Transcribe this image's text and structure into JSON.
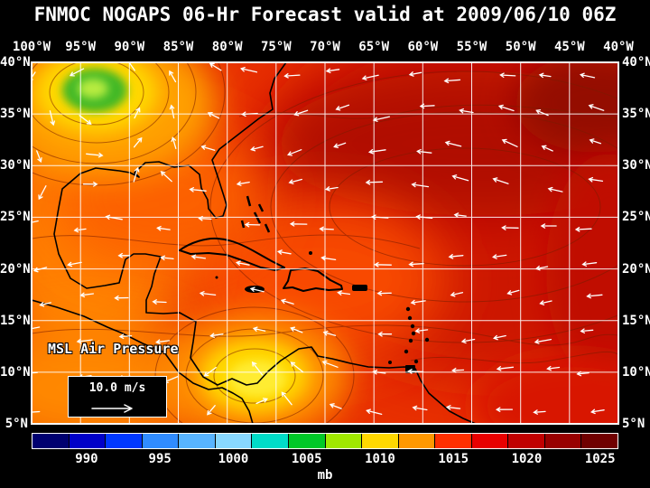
{
  "title": "FNMOC NOGAPS 06-Hr Forecast valid at 2009/06/10 06Z",
  "map": {
    "field_label": "MSL Air Pressure",
    "wind_reference_label": "10.0 m/s",
    "lon_ticks": [
      "100°W",
      "95°W",
      "90°W",
      "85°W",
      "80°W",
      "75°W",
      "70°W",
      "65°W",
      "60°W",
      "55°W",
      "50°W",
      "45°W",
      "40°W"
    ],
    "lat_ticks": [
      "40°N",
      "35°N",
      "30°N",
      "25°N",
      "20°N",
      "15°N",
      "10°N",
      "5°N"
    ]
  },
  "colorbar": {
    "unit_label": "mb",
    "tick_labels": [
      "990",
      "995",
      "1000",
      "1005",
      "1010",
      "1015",
      "1020",
      "1025"
    ],
    "cell_colors": [
      "#000070",
      "#0000c8",
      "#0038ff",
      "#308cff",
      "#58b4ff",
      "#88d8ff",
      "#00dcc8",
      "#00c828",
      "#a0e800",
      "#ffd800",
      "#ff9800",
      "#ff3000",
      "#e80000",
      "#c00000",
      "#980000",
      "#700000"
    ]
  },
  "chart_data": {
    "type": "heatmap",
    "title": "FNMOC NOGAPS 06-Hr Forecast valid at 2009/06/10 06Z",
    "model": "FNMOC NOGAPS",
    "forecast_hour": "06-Hr",
    "valid_time": "2009/06/10 06Z",
    "field": "MSL Air Pressure",
    "unit": "mb",
    "x_axis": {
      "label": "longitude",
      "ticks": [
        "100°W",
        "95°W",
        "90°W",
        "85°W",
        "80°W",
        "75°W",
        "70°W",
        "65°W",
        "60°W",
        "55°W",
        "50°W",
        "45°W",
        "40°W"
      ]
    },
    "y_axis": {
      "label": "latitude",
      "ticks": [
        "40°N",
        "35°N",
        "30°N",
        "25°N",
        "20°N",
        "15°N",
        "10°N",
        "5°N"
      ]
    },
    "grid_interval_deg": 5,
    "colorbar_tick_values_mb": [
      990,
      995,
      1000,
      1005,
      1010,
      1015,
      1020,
      1025
    ],
    "pressure_features": [
      {
        "type": "low",
        "location": "about 37N 93W over south-central United States",
        "approx_min_pressure_mb": 1004,
        "shading": "yellow ring with green core"
      },
      {
        "type": "low",
        "location": "about 10N 77W over SW Caribbean / Central America",
        "approx_min_pressure_mb": 1009,
        "shading": "yellow blob"
      },
      {
        "type": "high",
        "location": "Atlantic subtropical ridge about 25-32N, 45-60W",
        "approx_max_pressure_mb": 1021,
        "shading": "dark red"
      },
      {
        "type": "background",
        "note": "most of domain shaded red/orange, about 1012-1018 mb"
      }
    ],
    "wind_vectors": {
      "reference_speed": "10.0 m/s",
      "pattern": "easterly trade winds across the tropics; cyclonic circulation around the US low; broadly westward flow elsewhere"
    }
  }
}
